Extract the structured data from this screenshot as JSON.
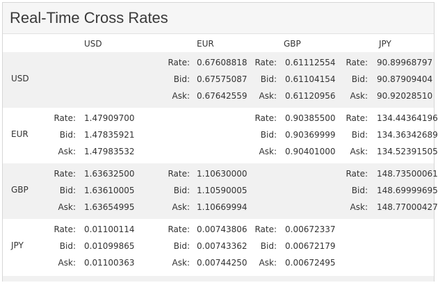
{
  "widget": {
    "title": "Real-Time Cross Rates"
  },
  "columns": [
    "USD",
    "EUR",
    "GBP",
    "JPY"
  ],
  "labels": {
    "rate": "Rate:",
    "bid": "Bid:",
    "ask": "Ask:"
  },
  "rows": [
    {
      "currency": "USD",
      "cells": [
        null,
        {
          "rate": "0.67608818",
          "bid": "0.67575087",
          "ask": "0.67642559"
        },
        {
          "rate": "0.61112554",
          "bid": "0.61104154",
          "ask": "0.61120956"
        },
        {
          "rate": "90.89968797",
          "bid": "90.87909404",
          "ask": "90.92028510"
        }
      ]
    },
    {
      "currency": "EUR",
      "cells": [
        {
          "rate": "1.47909700",
          "bid": "1.47835921",
          "ask": "1.47983532"
        },
        null,
        {
          "rate": "0.90385500",
          "bid": "0.90369999",
          "ask": "0.90401000"
        },
        {
          "rate": "134.44364196",
          "bid": "134.36342689",
          "ask": "134.52391505"
        }
      ]
    },
    {
      "currency": "GBP",
      "cells": [
        {
          "rate": "1.63632500",
          "bid": "1.63610005",
          "ask": "1.63654995"
        },
        {
          "rate": "1.10630000",
          "bid": "1.10590005",
          "ask": "1.10669994"
        },
        null,
        {
          "rate": "148.73500061",
          "bid": "148.69999695",
          "ask": "148.77000427"
        }
      ]
    },
    {
      "currency": "JPY",
      "cells": [
        {
          "rate": "0.01100114",
          "bid": "0.01099865",
          "ask": "0.01100363"
        },
        {
          "rate": "0.00743806",
          "bid": "0.00743362",
          "ask": "0.00744250"
        },
        {
          "rate": "0.00672337",
          "bid": "0.00672179",
          "ask": "0.00672495"
        },
        null
      ]
    }
  ]
}
